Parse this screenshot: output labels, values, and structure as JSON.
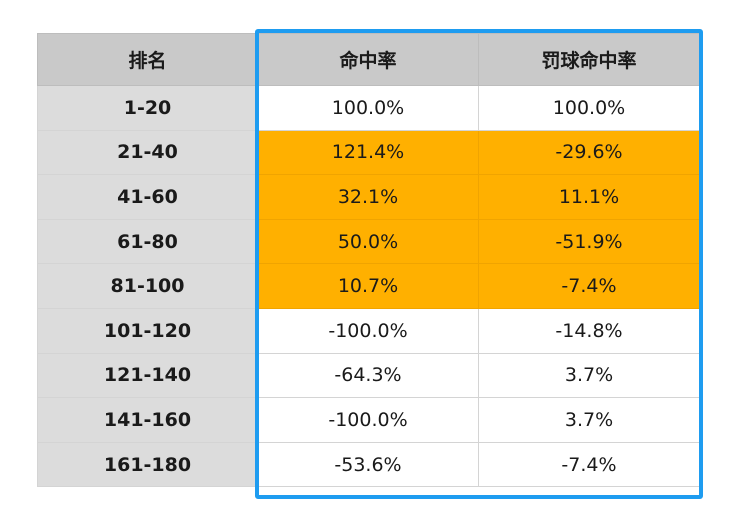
{
  "table": {
    "headers": [
      "排名",
      "命中率",
      "罚球命中率"
    ],
    "rows": [
      {
        "rank": "1-20",
        "fg": "100.0%",
        "ft": "100.0%",
        "highlighted": false
      },
      {
        "rank": "21-40",
        "fg": "121.4%",
        "ft": "-29.6%",
        "highlighted": true
      },
      {
        "rank": "41-60",
        "fg": "32.1%",
        "ft": "11.1%",
        "highlighted": true
      },
      {
        "rank": "61-80",
        "fg": "50.0%",
        "ft": "-51.9%",
        "highlighted": true
      },
      {
        "rank": "81-100",
        "fg": "10.7%",
        "ft": "-7.4%",
        "highlighted": true
      },
      {
        "rank": "101-120",
        "fg": "-100.0%",
        "ft": "-14.8%",
        "highlighted": false
      },
      {
        "rank": "121-140",
        "fg": "-64.3%",
        "ft": "3.7%",
        "highlighted": false
      },
      {
        "rank": "141-160",
        "fg": "-100.0%",
        "ft": "3.7%",
        "highlighted": false
      },
      {
        "rank": "161-180",
        "fg": "-53.6%",
        "ft": "-7.4%",
        "highlighted": false
      }
    ]
  },
  "colors": {
    "header_bg": "#c9c9c9",
    "rank_bg": "#dcdcdc",
    "highlight": "#ffb000",
    "frame": "#1e9cf0"
  }
}
